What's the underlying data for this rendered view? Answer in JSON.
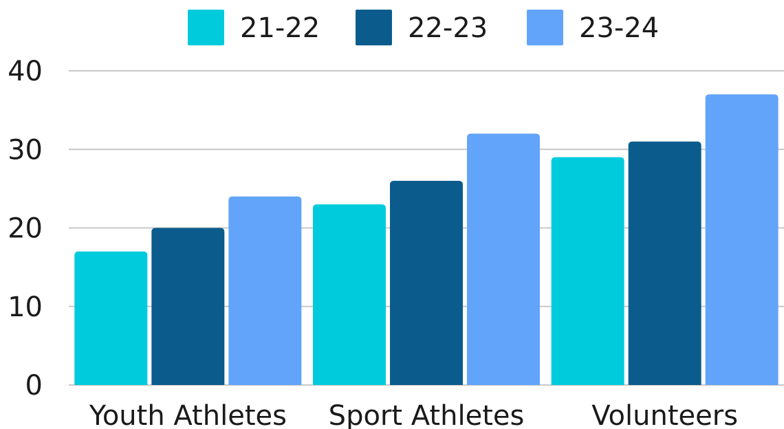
{
  "chart_data": {
    "type": "bar",
    "title": "",
    "xlabel": "",
    "ylabel": "",
    "categories": [
      "Youth Athletes",
      "Sport Athletes",
      "Volunteers"
    ],
    "series": [
      {
        "name": "21-22",
        "values": [
          17,
          23,
          29
        ],
        "color": "#00CBDC"
      },
      {
        "name": "22-23",
        "values": [
          20,
          26,
          31
        ],
        "color": "#0B5C8C"
      },
      {
        "name": "23-24",
        "values": [
          24,
          32,
          37
        ],
        "color": "#62A4FA"
      }
    ],
    "ylim": [
      0,
      40
    ],
    "yticks": [
      "0",
      "10",
      "20",
      "30",
      "40"
    ],
    "grid": true,
    "legend_position": "top"
  }
}
